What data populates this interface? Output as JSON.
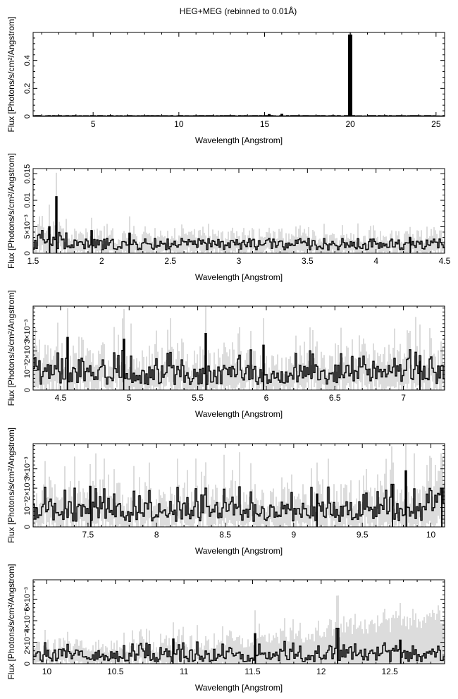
{
  "figure": {
    "title": "HEG+MEG (rebinned to 0.01Å)"
  },
  "chart_data": [
    {
      "type": "line",
      "xlabel": "Wavelength [Angstrom]",
      "ylabel": "Flux [Photons/s/cm²/Angstrom]",
      "xlim": [
        1.5,
        25.5
      ],
      "ylim": [
        0,
        0.6
      ],
      "xticks": [
        5,
        10,
        15,
        20,
        25
      ],
      "xtick_labels": [
        "5",
        "10",
        "15",
        "20",
        "25"
      ],
      "yticks": [
        0,
        0.2,
        0.4
      ],
      "ytick_labels": [
        "0",
        "0.2",
        "0.4"
      ],
      "line_color": "#000000",
      "error_color": "#a9a9a9",
      "peaks": [
        {
          "x": 15.26,
          "y": 0.011
        },
        {
          "x": 16.02,
          "y": 0.013
        },
        {
          "x": 19.0,
          "y": 0.004
        },
        {
          "x": 20.0,
          "y": 0.58
        }
      ]
    },
    {
      "type": "line",
      "xlabel": "Wavelength [Angstrom]",
      "ylabel": "Flux [Photons/s/cm²/Angstrom]",
      "xlim": [
        1.5,
        4.5
      ],
      "ylim": [
        0,
        0.016
      ],
      "xticks": [
        1.5,
        2,
        2.5,
        3,
        3.5,
        4,
        4.5
      ],
      "xtick_labels": [
        "1.5",
        "2",
        "2.5",
        "3",
        "3.5",
        "4",
        "4.5"
      ],
      "yticks": [
        0,
        0.005,
        0.01,
        0.015
      ],
      "ytick_labels": [
        "0",
        "5×10⁻³",
        "0.01",
        "0.015"
      ],
      "line_color": "#000000",
      "error_color": "#a9a9a9",
      "peaks": [
        {
          "x": 1.62,
          "y": 0.005
        },
        {
          "x": 1.67,
          "y": 0.0107
        },
        {
          "x": 1.93,
          "y": 0.0043
        },
        {
          "x": 2.2,
          "y": 0.0038
        },
        {
          "x": 4.25,
          "y": 0.003
        }
      ]
    },
    {
      "type": "line",
      "xlabel": "Wavelength [Angstrom]",
      "ylabel": "Flux [Photons/s/cm²/Angstrom]",
      "xlim": [
        4.3,
        7.3
      ],
      "ylim": [
        0,
        0.0043
      ],
      "xticks": [
        4.5,
        5,
        5.5,
        6,
        6.5,
        7
      ],
      "xtick_labels": [
        "4.5",
        "5",
        "5.5",
        "6",
        "6.5",
        "7"
      ],
      "yticks": [
        0,
        0.001,
        0.002,
        0.003
      ],
      "ytick_labels": [
        "0",
        "10⁻³",
        "2×10⁻³",
        "3×10⁻³"
      ],
      "line_color": "#000000",
      "error_color": "#a9a9a9",
      "peaks": [
        {
          "x": 4.55,
          "y": 0.0027
        },
        {
          "x": 4.96,
          "y": 0.0026
        },
        {
          "x": 5.56,
          "y": 0.0029
        },
        {
          "x": 5.98,
          "y": 0.0023
        },
        {
          "x": 7.12,
          "y": 0.0015
        }
      ]
    },
    {
      "type": "line",
      "xlabel": "Wavelength [Angstrom]",
      "ylabel": "Flux [Photons/s/cm²/Angstrom]",
      "xlim": [
        7.1,
        10.1
      ],
      "ylim": [
        0,
        0.0043
      ],
      "xticks": [
        7.5,
        8,
        8.5,
        9,
        9.5,
        10
      ],
      "xtick_labels": [
        "7.5",
        "8",
        "8.5",
        "9",
        "9.5",
        "10"
      ],
      "yticks": [
        0,
        0.001,
        0.002,
        0.003
      ],
      "ytick_labels": [
        "0",
        "10⁻³",
        "2×10⁻³",
        "3×10⁻³"
      ],
      "line_color": "#000000",
      "error_color": "#a9a9a9",
      "peaks": [
        {
          "x": 7.52,
          "y": 0.0021
        },
        {
          "x": 9.17,
          "y": 0.0017
        },
        {
          "x": 9.72,
          "y": 0.0022
        },
        {
          "x": 9.82,
          "y": 0.0029
        },
        {
          "x": 10.08,
          "y": 0.002
        }
      ]
    },
    {
      "type": "line",
      "xlabel": "Wavelength [Angstrom]",
      "ylabel": "Flux [Photons/s/cm²/Angstrom]",
      "xlim": [
        9.9,
        12.9
      ],
      "ylim": [
        0,
        0.0078
      ],
      "xticks": [
        10,
        10.5,
        11,
        11.5,
        12,
        12.5
      ],
      "xtick_labels": [
        "10",
        "10.5",
        "11",
        "11.5",
        "12",
        "12.5"
      ],
      "yticks": [
        0,
        0.002,
        0.004,
        0.006
      ],
      "ytick_labels": [
        "0",
        "2×10⁻³",
        "4×10⁻³",
        "6×10⁻³"
      ],
      "line_color": "#000000",
      "error_color": "#a9a9a9",
      "peaks": [
        {
          "x": 10.92,
          "y": 0.0023
        },
        {
          "x": 11.52,
          "y": 0.0028
        },
        {
          "x": 12.12,
          "y": 0.0033
        },
        {
          "x": 12.58,
          "y": 0.0022
        }
      ]
    }
  ]
}
